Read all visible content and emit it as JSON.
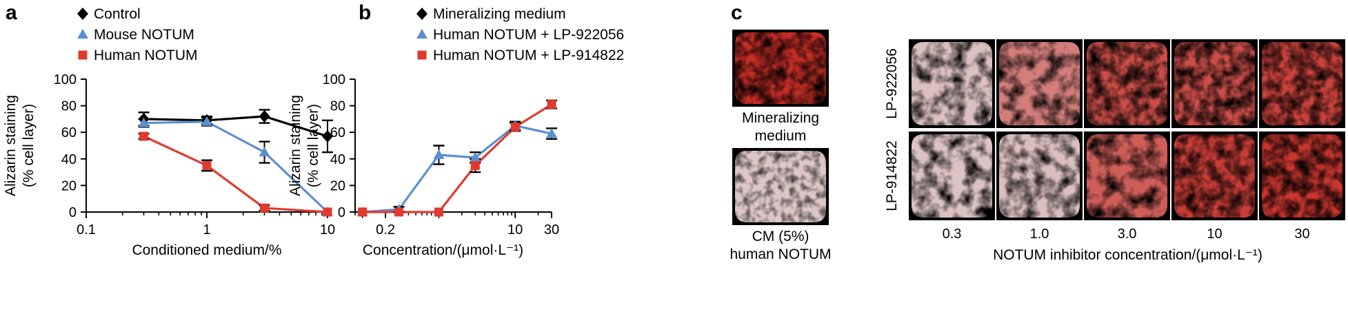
{
  "panels": {
    "a": "a",
    "b": "b",
    "c": "c"
  },
  "colors": {
    "control": "#000000",
    "blue": "#5b8fd0",
    "red": "#e03a2f"
  },
  "chart_data": [
    {
      "type": "line",
      "panel": "a",
      "xscale": "log",
      "xlabel": "Conditioned medium/%",
      "ylabel": [
        "Alizarin staining",
        "(% cell layer)"
      ],
      "xlim": [
        0.1,
        10
      ],
      "ylim": [
        0,
        100
      ],
      "xticks": [
        "0.1",
        "1",
        "10"
      ],
      "yticks": [
        "0",
        "20",
        "40",
        "60",
        "80",
        "100"
      ],
      "legend_position": "top-left",
      "series": [
        {
          "name": "Control",
          "marker": "diamond",
          "color": "#000000",
          "x": [
            0.3,
            1,
            3,
            10
          ],
          "y": [
            70,
            69,
            72,
            57
          ],
          "err": [
            5,
            3,
            5,
            12
          ]
        },
        {
          "name": "Mouse NOTUM",
          "marker": "triangle",
          "color": "#5b8fd0",
          "x": [
            0.3,
            1,
            3,
            10
          ],
          "y": [
            67,
            68,
            45,
            0
          ],
          "err": [
            3,
            3,
            8,
            0
          ]
        },
        {
          "name": "Human NOTUM",
          "marker": "square",
          "color": "#e03a2f",
          "x": [
            0.3,
            1,
            3,
            10
          ],
          "y": [
            57,
            35,
            3,
            0
          ],
          "err": [
            2,
            4,
            2,
            0
          ]
        }
      ]
    },
    {
      "type": "line",
      "panel": "b",
      "xscale": "log",
      "xlabel": "Concentration/(μmol·L⁻¹)",
      "ylabel": [
        "Alizarin staining",
        "(% cell layer)"
      ],
      "xlim": [
        0.08,
        30
      ],
      "ylim": [
        0,
        100
      ],
      "xticks": [
        "0.2",
        "10",
        "30"
      ],
      "yticks": [
        "0",
        "20",
        "40",
        "60",
        "80",
        "100"
      ],
      "legend_position": "top-left",
      "series": [
        {
          "name": "Mineralizing medium",
          "marker": "diamond",
          "color": "#000000",
          "x": [],
          "y": [],
          "err": []
        },
        {
          "name": "Human NOTUM + LP-922056",
          "marker": "triangle",
          "color": "#5b8fd0",
          "x": [
            0.1,
            0.3,
            1,
            3,
            10,
            30
          ],
          "y": [
            0,
            2,
            43,
            41,
            65,
            59
          ],
          "err": [
            0,
            2,
            7,
            4,
            3,
            4
          ]
        },
        {
          "name": "Human NOTUM + LP-914822",
          "marker": "square",
          "color": "#e03a2f",
          "x": [
            0.1,
            0.3,
            1,
            3,
            10,
            30
          ],
          "y": [
            0,
            0,
            0,
            35,
            64,
            81
          ],
          "err": [
            0,
            0,
            0,
            5,
            3,
            3
          ]
        }
      ]
    }
  ],
  "panel_c": {
    "left_captions": [
      [
        "Mineralizing",
        "medium"
      ],
      [
        "CM (5%)",
        "human NOTUM"
      ]
    ],
    "row_labels": [
      "LP-922056",
      "LP-914822"
    ],
    "col_labels": [
      "0.3",
      "1.0",
      "3.0",
      "10",
      "30"
    ],
    "xlabel": "NOTUM inhibitor concentration/(μmol·L⁻¹)",
    "stain_levels": [
      [
        0.03,
        0.45,
        0.75,
        0.75,
        0.82
      ],
      [
        0.02,
        0.04,
        0.65,
        0.85,
        0.9
      ]
    ],
    "control_stain_levels": [
      0.95,
      0.0
    ]
  }
}
